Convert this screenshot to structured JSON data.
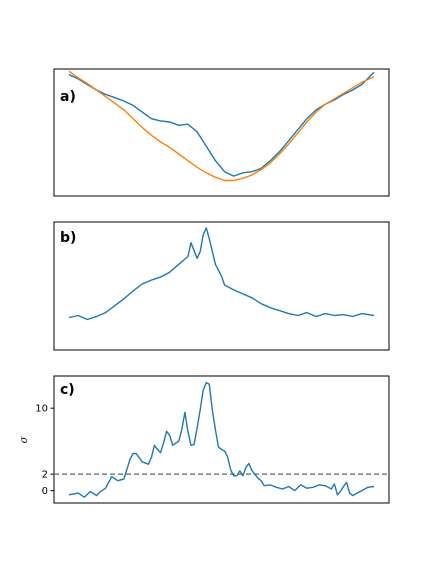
{
  "figure": {
    "series_colors": {
      "blue": "#1f77b4",
      "orange": "#ff7f0e",
      "reference": "#7f7f7f"
    }
  },
  "chart_data": [
    {
      "type": "line",
      "panel": "a)",
      "x_ticks": false,
      "y_ticks": false,
      "xlim": [
        0,
        100
      ],
      "ylim": [
        -0.1,
        1.05
      ],
      "series": [
        {
          "color": "#1f77b4",
          "x": [
            0,
            3,
            6,
            9,
            12,
            15,
            18,
            21,
            24,
            27,
            30,
            33,
            36,
            39,
            42,
            45,
            48,
            51,
            54,
            57,
            60,
            63,
            66,
            69,
            72,
            75,
            78,
            81,
            84,
            87,
            90,
            93,
            96,
            100
          ],
          "y": [
            1.0,
            0.96,
            0.91,
            0.86,
            0.82,
            0.79,
            0.76,
            0.72,
            0.66,
            0.6,
            0.58,
            0.57,
            0.54,
            0.55,
            0.48,
            0.35,
            0.22,
            0.12,
            0.08,
            0.11,
            0.12,
            0.15,
            0.22,
            0.3,
            0.4,
            0.5,
            0.6,
            0.68,
            0.73,
            0.77,
            0.82,
            0.86,
            0.91,
            1.02
          ]
        },
        {
          "color": "#ff7f0e",
          "x": [
            0,
            3,
            6,
            9,
            12,
            15,
            18,
            21,
            24,
            27,
            30,
            33,
            36,
            39,
            42,
            45,
            48,
            51,
            54,
            57,
            60,
            63,
            66,
            69,
            72,
            75,
            78,
            81,
            84,
            87,
            90,
            93,
            96,
            100
          ],
          "y": [
            1.03,
            0.97,
            0.92,
            0.86,
            0.8,
            0.74,
            0.68,
            0.6,
            0.52,
            0.45,
            0.39,
            0.34,
            0.28,
            0.22,
            0.16,
            0.11,
            0.07,
            0.04,
            0.04,
            0.06,
            0.09,
            0.14,
            0.2,
            0.28,
            0.37,
            0.47,
            0.57,
            0.66,
            0.73,
            0.78,
            0.83,
            0.88,
            0.93,
            0.98
          ]
        }
      ]
    },
    {
      "type": "line",
      "panel": "b)",
      "x_ticks": false,
      "y_ticks": false,
      "xlim": [
        0,
        100
      ],
      "ylim": [
        -0.25,
        1.05
      ],
      "series": [
        {
          "color": "#1f77b4",
          "x": [
            0,
            3,
            6,
            9,
            12,
            15,
            18,
            21,
            24,
            27,
            30,
            33,
            36,
            39,
            40,
            42,
            43,
            44,
            45,
            46,
            48,
            50,
            51,
            54,
            57,
            60,
            63,
            66,
            69,
            72,
            75,
            78,
            81,
            84,
            87,
            90,
            93,
            96,
            100
          ],
          "y": [
            0.08,
            0.1,
            0.06,
            0.09,
            0.13,
            0.2,
            0.27,
            0.35,
            0.42,
            0.46,
            0.49,
            0.54,
            0.62,
            0.7,
            0.84,
            0.68,
            0.75,
            0.92,
            0.99,
            0.88,
            0.62,
            0.5,
            0.41,
            0.36,
            0.32,
            0.28,
            0.22,
            0.18,
            0.15,
            0.12,
            0.1,
            0.13,
            0.09,
            0.12,
            0.1,
            0.11,
            0.09,
            0.12,
            0.1
          ]
        }
      ]
    },
    {
      "type": "line",
      "panel": "c)",
      "ylabel": "σ",
      "x_ticks": false,
      "y_ticks": [
        0,
        2,
        10
      ],
      "xlim": [
        0,
        100
      ],
      "ylim": [
        -1.5,
        13.9
      ],
      "reference_line": {
        "y": 2,
        "style": "dashed",
        "color": "#7f7f7f"
      },
      "series": [
        {
          "color": "#1f77b4",
          "x": [
            0,
            3,
            5,
            7,
            9,
            10,
            12,
            14,
            16,
            18,
            20,
            21,
            22,
            24,
            26,
            27,
            28,
            29,
            30,
            31,
            32,
            33,
            34,
            36,
            37,
            38,
            39,
            40,
            41,
            42,
            43,
            44,
            45,
            46,
            47,
            48,
            49,
            50,
            51,
            52,
            53,
            54,
            55,
            56,
            57,
            58,
            59,
            60,
            62,
            63,
            64,
            66,
            68,
            70,
            72,
            74,
            76,
            78,
            80,
            82,
            84,
            85,
            86,
            87,
            88,
            89,
            90,
            91,
            92,
            93,
            94,
            96,
            98,
            100
          ],
          "y": [
            -0.5,
            -0.3,
            -0.8,
            -0.1,
            -0.6,
            -0.2,
            0.3,
            1.7,
            1.2,
            1.4,
            3.8,
            4.5,
            4.5,
            3.5,
            3.2,
            4.0,
            5.5,
            5.0,
            4.6,
            5.8,
            7.2,
            6.7,
            5.5,
            6.0,
            7.4,
            9.5,
            7.2,
            5.5,
            5.6,
            7.6,
            9.8,
            12.2,
            13.1,
            12.9,
            9.8,
            7.4,
            5.3,
            5.0,
            4.8,
            4.1,
            2.5,
            1.8,
            1.8,
            2.4,
            1.8,
            2.8,
            3.3,
            2.4,
            1.5,
            1.2,
            0.6,
            0.7,
            0.4,
            0.2,
            0.5,
            0.0,
            0.7,
            0.3,
            0.4,
            0.7,
            0.6,
            0.4,
            0.2,
            0.8,
            -0.5,
            -0.1,
            0.5,
            1.0,
            -0.3,
            -0.6,
            -0.4,
            0.0,
            0.4,
            0.5
          ]
        }
      ]
    }
  ]
}
